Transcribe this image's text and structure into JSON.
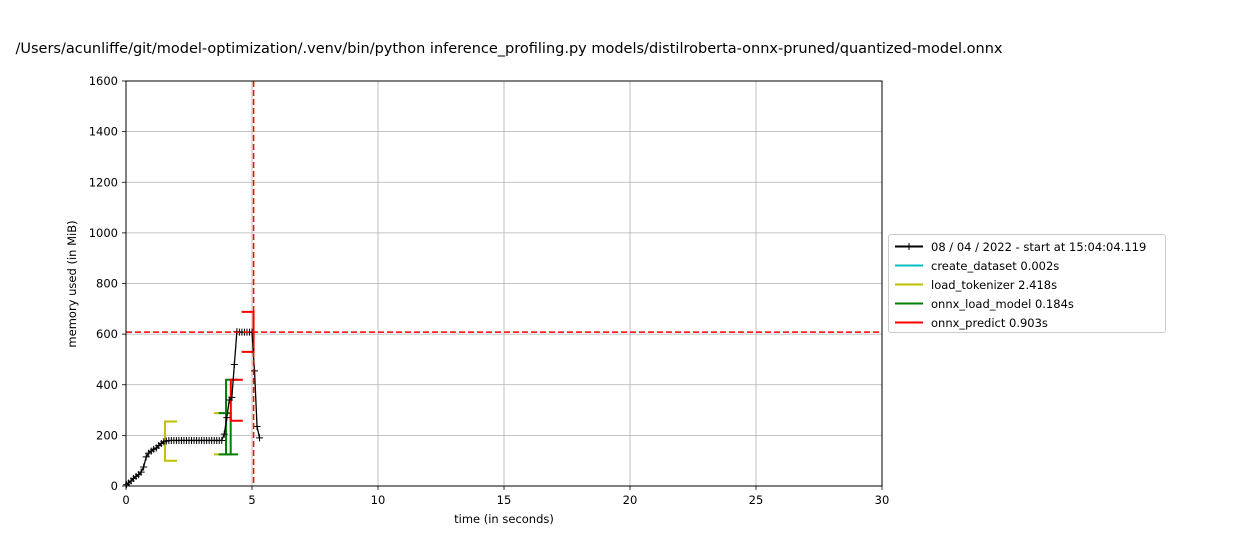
{
  "chart_data": {
    "type": "line",
    "title": "/Users/acunliffe/git/model-optimization/.venv/bin/python inference_profiling.py models/distilroberta-onnx-pruned/quantized-model.onnx",
    "xlabel": "time (in seconds)",
    "ylabel": "memory used (in MiB)",
    "xlim": [
      0,
      30
    ],
    "ylim": [
      0,
      1600
    ],
    "x_ticks": [
      "0",
      "5",
      "10",
      "15",
      "20",
      "25",
      "30"
    ],
    "y_ticks": [
      "0",
      "200",
      "400",
      "600",
      "800",
      "1000",
      "1200",
      "1400",
      "1600"
    ],
    "grid": true,
    "legend_position": "right",
    "series": [
      {
        "name": "08 / 04 / 2022 - start at 15:04:04.119",
        "color": "#000000",
        "marker": "+",
        "x": [
          0.02,
          0.1,
          0.2,
          0.3,
          0.4,
          0.5,
          0.6,
          0.7,
          0.8,
          0.9,
          1.0,
          1.1,
          1.2,
          1.3,
          1.4,
          1.5,
          1.6,
          1.7,
          1.8,
          1.9,
          2.0,
          2.1,
          2.2,
          2.3,
          2.4,
          2.5,
          2.6,
          2.7,
          2.8,
          2.9,
          3.0,
          3.1,
          3.2,
          3.3,
          3.4,
          3.5,
          3.6,
          3.7,
          3.8,
          3.9,
          4.0,
          4.1,
          4.2,
          4.3,
          4.4,
          4.5,
          4.6,
          4.7,
          4.8,
          4.9,
          5.0,
          5.1,
          5.2,
          5.3
        ],
        "y": [
          5,
          12,
          20,
          30,
          38,
          45,
          55,
          75,
          115,
          130,
          138,
          145,
          150,
          160,
          168,
          175,
          178,
          180,
          180,
          180,
          180,
          180,
          180,
          180,
          180,
          180,
          180,
          180,
          180,
          180,
          180,
          180,
          180,
          180,
          180,
          180,
          180,
          180,
          180,
          205,
          270,
          340,
          350,
          480,
          610,
          608,
          608,
          608,
          608,
          608,
          608,
          455,
          235,
          190
        ]
      }
    ],
    "functions": [
      {
        "name": "create_dataset 0.002s",
        "color": "#00bfbf",
        "start": 0.0,
        "end": 0.002,
        "ymin": 0,
        "ymax": 0
      },
      {
        "name": "load_tokenizer 2.418s",
        "color": "#bfbf00",
        "start": 1.55,
        "end": 3.968,
        "ymin": 100,
        "ymax": 255,
        "end_ymin": 125,
        "end_ymax": 288
      },
      {
        "name": "onnx_load_model 0.184s",
        "color": "#008000",
        "start": 3.97,
        "end": 4.154,
        "ymin": 125,
        "ymax": 420,
        "end_ymin": 125,
        "end_ymax": 288
      },
      {
        "name": "onnx_predict 0.903s",
        "color": "#ff0000",
        "start": 4.16,
        "end": 5.063,
        "ymin": 258,
        "ymax": 420,
        "end_ymin": 530,
        "end_ymax": 688
      }
    ],
    "max_memory_line": {
      "y": 608,
      "color": "#ff0000"
    },
    "max_time_line": {
      "x": 5.063,
      "color": "#ff0000"
    }
  }
}
